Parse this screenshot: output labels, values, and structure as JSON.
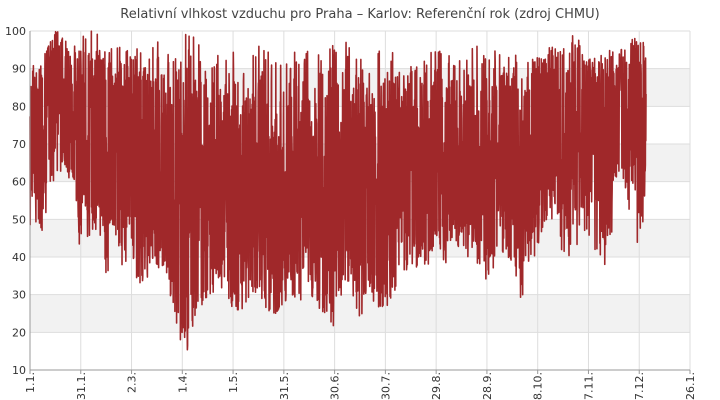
{
  "chart_data": {
    "type": "line",
    "title": "Relativní vlhkost vzduchu pro Praha – Karlov: Referenční rok (zdroj CHMU)",
    "xlabel": "",
    "ylabel": "",
    "ylim": [
      10,
      100
    ],
    "xlim": [
      0,
      390
    ],
    "grid": true,
    "legend": "none",
    "y_ticks": [
      "10",
      "20",
      "30",
      "40",
      "50",
      "60",
      "70",
      "80",
      "90",
      "100"
    ],
    "x_ticks": [
      {
        "label": "1.1.",
        "day": 0
      },
      {
        "label": "31.1.",
        "day": 30
      },
      {
        "label": "2.3.",
        "day": 60
      },
      {
        "label": "1.4.",
        "day": 90
      },
      {
        "label": "1.5.",
        "day": 120
      },
      {
        "label": "31.5.",
        "day": 150
      },
      {
        "label": "30.6.",
        "day": 180
      },
      {
        "label": "30.7.",
        "day": 210
      },
      {
        "label": "29.8.",
        "day": 240
      },
      {
        "label": "28.9.",
        "day": 270
      },
      {
        "label": "28.10.",
        "day": 300
      },
      {
        "label": "27.11.",
        "day": 330
      },
      {
        "label": "27.12.",
        "day": 360
      },
      {
        "label": "26.1.",
        "day": 390
      }
    ],
    "series": [
      {
        "color": "#a0282a",
        "x": [
          0,
          5,
          10,
          15,
          20,
          25,
          30,
          35,
          40,
          45,
          50,
          55,
          60,
          65,
          70,
          75,
          80,
          85,
          90,
          95,
          100,
          105,
          110,
          115,
          120,
          125,
          130,
          135,
          140,
          145,
          150,
          155,
          160,
          165,
          170,
          175,
          180,
          185,
          190,
          195,
          200,
          205,
          210,
          215,
          220,
          225,
          230,
          235,
          240,
          245,
          250,
          255,
          260,
          265,
          270,
          275,
          280,
          285,
          290,
          295,
          300,
          305,
          310,
          315,
          320,
          325,
          330,
          335,
          340,
          345,
          350,
          355,
          360,
          364
        ],
        "y_max": [
          90,
          92,
          95,
          100,
          100,
          98,
          98,
          100,
          100,
          96,
          95,
          97,
          95,
          98,
          94,
          97,
          98,
          92,
          100,
          99,
          97,
          100,
          93,
          96,
          95,
          96,
          97,
          98,
          98,
          96,
          95,
          95,
          98,
          95,
          97,
          92,
          100,
          100,
          96,
          97,
          92,
          97,
          94,
          95,
          90,
          92,
          95,
          98,
          96,
          95,
          94,
          92,
          95,
          98,
          95,
          96,
          93,
          97,
          90,
          92,
          97,
          96,
          96,
          97,
          100,
          100,
          95,
          93,
          94,
          96,
          96,
          98,
          98,
          97
        ],
        "y_min": [
          45,
          43,
          52,
          60,
          62,
          58,
          40,
          44,
          45,
          30,
          43,
          37,
          40,
          28,
          35,
          38,
          30,
          25,
          14,
          14,
          25,
          30,
          31,
          32,
          26,
          26,
          30,
          31,
          26,
          25,
          28,
          30,
          28,
          31,
          27,
          24,
          21,
          32,
          30,
          23,
          30,
          27,
          26,
          30,
          32,
          34,
          38,
          35,
          40,
          38,
          41,
          40,
          39,
          37,
          28,
          40,
          40,
          35,
          25,
          38,
          40,
          45,
          45,
          40,
          38,
          45,
          45,
          40,
          36,
          50,
          55,
          50,
          34,
          60
        ],
        "y_mid": [
          75,
          70,
          80,
          85,
          82,
          78,
          70,
          72,
          74,
          65,
          68,
          66,
          68,
          62,
          66,
          64,
          60,
          55,
          52,
          50,
          58,
          55,
          60,
          58,
          54,
          50,
          55,
          58,
          50,
          48,
          52,
          55,
          54,
          56,
          52,
          50,
          55,
          60,
          58,
          55,
          56,
          55,
          54,
          58,
          60,
          62,
          64,
          62,
          66,
          62,
          65,
          64,
          66,
          62,
          58,
          65,
          66,
          62,
          60,
          66,
          70,
          72,
          74,
          70,
          68,
          75,
          72,
          70,
          66,
          76,
          80,
          78,
          72,
          80
        ]
      }
    ]
  }
}
